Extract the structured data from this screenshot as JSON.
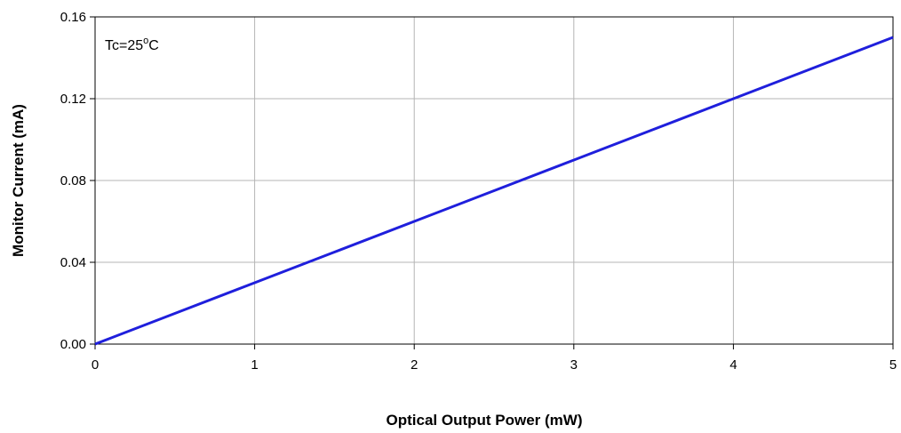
{
  "chart_data": {
    "type": "line",
    "title": "",
    "xlabel": "Optical Output Power (mW)",
    "ylabel": "Monitor Current (mA)",
    "xlim": [
      0,
      5
    ],
    "ylim": [
      0,
      0.16
    ],
    "x_ticks": [
      "0",
      "1",
      "2",
      "3",
      "4",
      "5"
    ],
    "y_ticks": [
      "0.00",
      "0.04",
      "0.08",
      "0.12",
      "0.16"
    ],
    "grid": true,
    "annotation": {
      "prefix": "Tc=25",
      "sup": "o",
      "suffix": "C"
    },
    "series": [
      {
        "color": "#1f1fdc",
        "x": [
          0,
          0.5,
          1,
          1.5,
          2,
          2.5,
          3,
          3.5,
          4,
          4.5,
          5
        ],
        "y": [
          0,
          0.015,
          0.03,
          0.045,
          0.06,
          0.075,
          0.09,
          0.105,
          0.12,
          0.135,
          0.15
        ]
      }
    ]
  }
}
